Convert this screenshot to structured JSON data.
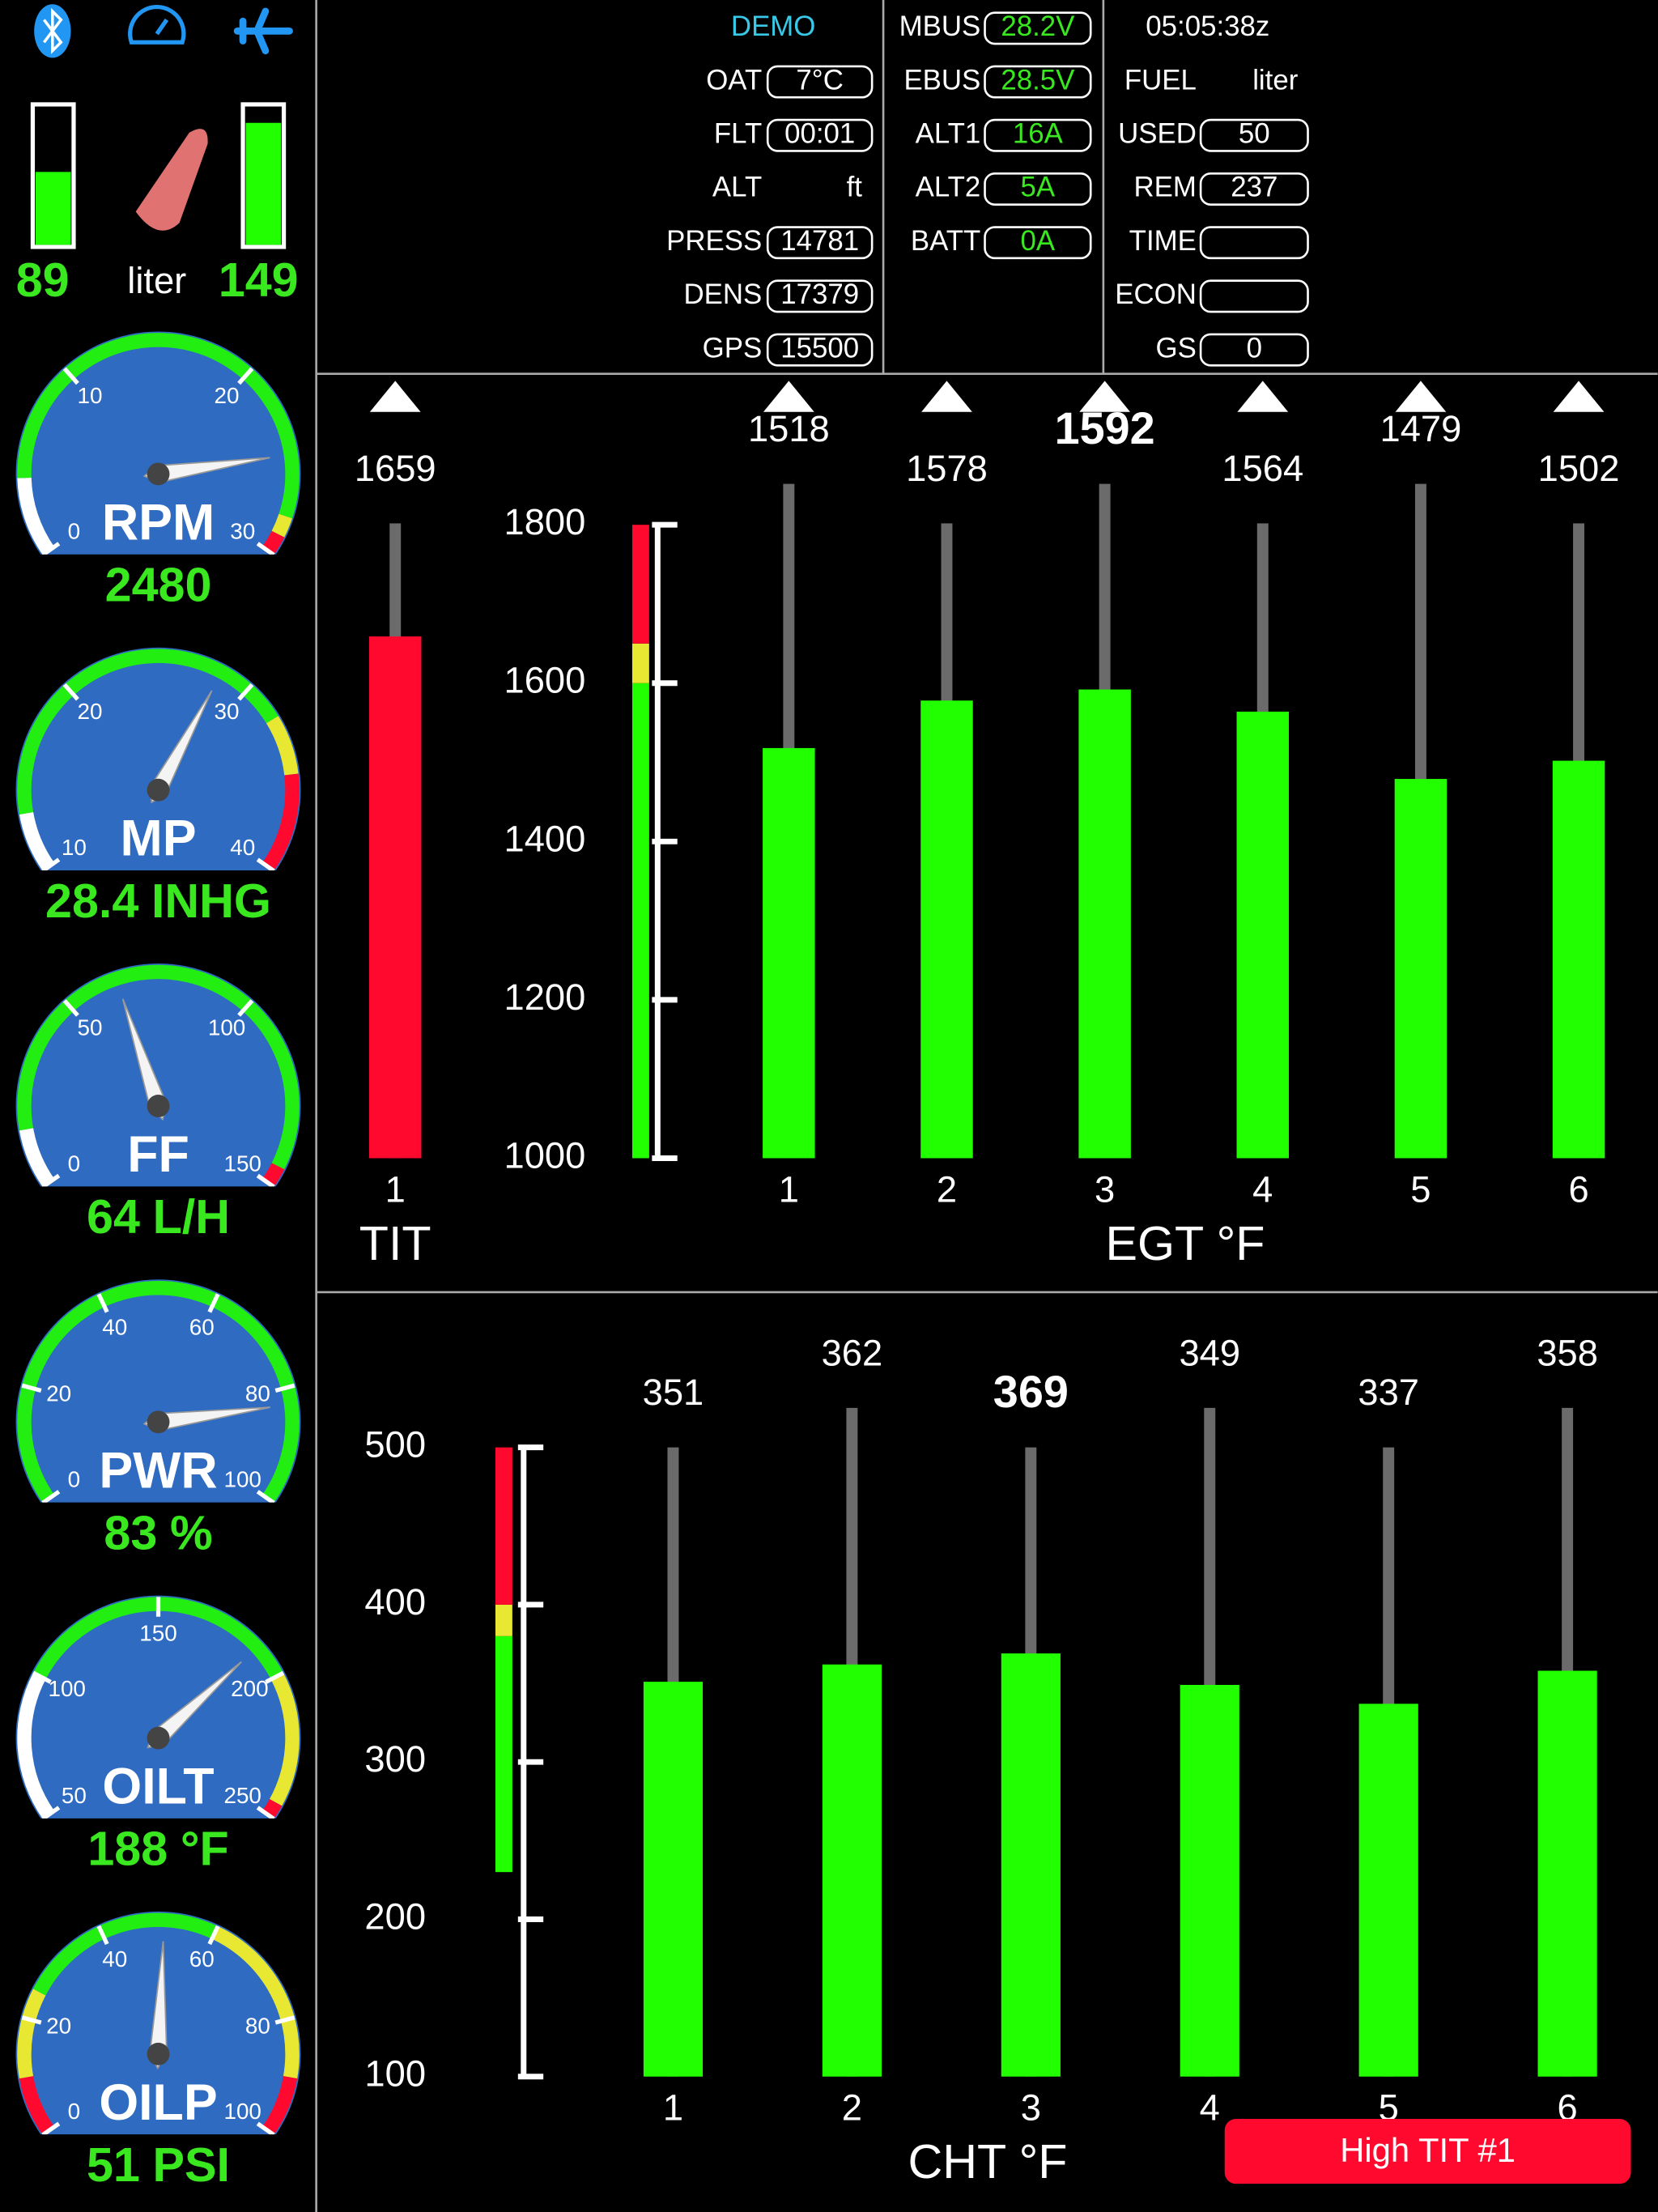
{
  "fuel": {
    "left": 89,
    "unit": "liter",
    "right": 149
  },
  "gauges": [
    {
      "name": "RPM",
      "range": [
        0,
        3000
      ],
      "ticks": [
        0,
        {
          "value": 1000,
          "label": "10"
        },
        {
          "value": 2000,
          "label": "20"
        },
        {
          "value": 3000,
          "label": "30"
        }
      ],
      "value": 2480,
      "bands": [
        {
          "from": 0,
          "to": 400,
          "color": "#ffffff"
        },
        {
          "from": 400,
          "to": 2800,
          "color": "#22ee11"
        },
        {
          "from": 2800,
          "to": 2900,
          "color": "#e8e832"
        },
        {
          "from": 2900,
          "to": 3000,
          "color": "#ff0a2e"
        }
      ]
    },
    {
      "name": "MP",
      "range": [
        10,
        40
      ],
      "ticks": [
        10,
        20,
        30,
        40
      ],
      "value": 28.4,
      "unit": "INHG",
      "bands": [
        {
          "from": 10,
          "to": 13,
          "color": "#ffffff"
        },
        {
          "from": 13,
          "to": 32,
          "color": "#22ee11"
        },
        {
          "from": 32,
          "to": 35,
          "color": "#e8e832"
        },
        {
          "from": 35,
          "to": 40,
          "color": "#ff0a2e"
        }
      ]
    },
    {
      "name": "FF",
      "range": [
        0,
        150
      ],
      "ticks": [
        0,
        50,
        100,
        150
      ],
      "value": 64,
      "unit": "L/H",
      "bands": [
        {
          "from": 0,
          "to": 15,
          "color": "#ffffff"
        },
        {
          "from": 15,
          "to": 145,
          "color": "#22ee11"
        },
        {
          "from": 145,
          "to": 150,
          "color": "#ff0a2e"
        }
      ]
    },
    {
      "name": "PWR",
      "range": [
        0,
        100
      ],
      "ticks": [
        0,
        20,
        40,
        60,
        80,
        100
      ],
      "value": 83,
      "unit": "%",
      "bands": [
        {
          "from": 0,
          "to": 100,
          "color": "#22ee11"
        }
      ]
    },
    {
      "name": "OILT",
      "range": [
        50,
        250
      ],
      "ticks": [
        50,
        100,
        150,
        200,
        250
      ],
      "value": 188,
      "unit": "°F",
      "bands": [
        {
          "from": 50,
          "to": 100,
          "color": "#ffffff"
        },
        {
          "from": 100,
          "to": 200,
          "color": "#22ee11"
        },
        {
          "from": 200,
          "to": 245,
          "color": "#e8e832"
        },
        {
          "from": 245,
          "to": 250,
          "color": "#ff0a2e"
        }
      ]
    },
    {
      "name": "OILP",
      "range": [
        0,
        100
      ],
      "ticks": [
        0,
        20,
        40,
        60,
        80,
        100
      ],
      "value": 51,
      "unit": "PSI",
      "bands": [
        {
          "from": 0,
          "to": 10,
          "color": "#ff0a2e"
        },
        {
          "from": 10,
          "to": 25,
          "color": "#e8e832"
        },
        {
          "from": 25,
          "to": 60,
          "color": "#22ee11"
        },
        {
          "from": 60,
          "to": 90,
          "color": "#e8e832"
        },
        {
          "from": 90,
          "to": 100,
          "color": "#ff0a2e"
        }
      ]
    }
  ],
  "info": {
    "columns": [
      {
        "value_color": "#ffffff",
        "rows": [
          {
            "label": "DEMO",
            "label_color": "#38c8e8"
          },
          {
            "label": "OAT",
            "value": "7°C",
            "box": true
          },
          {
            "label": "FLT",
            "value": "00:01",
            "box": true
          },
          {
            "label": "ALT",
            "value": "ft",
            "box": false
          },
          {
            "label": "PRESS",
            "value": 14781,
            "box": true
          },
          {
            "label": "DENS",
            "value": 17379,
            "box": true
          },
          {
            "label": "GPS",
            "value": 15500,
            "box": true
          }
        ]
      },
      {
        "value_color": "#39e81f",
        "rows": [
          {
            "label": "MBUS",
            "value": "28.2V",
            "box": true
          },
          {
            "label": "EBUS",
            "value": "28.5V",
            "box": true
          },
          {
            "label": "ALT1",
            "value": "16A",
            "box": true
          },
          {
            "label": "ALT2",
            "value": "5A",
            "box": true
          },
          {
            "label": "BATT",
            "value": "0A",
            "box": true
          }
        ]
      },
      {
        "value_color": "#ffffff",
        "rows": [
          {
            "label": "05:05:38z"
          },
          {
            "label": "FUEL",
            "value": "liter",
            "box": false
          },
          {
            "label": "USED",
            "value": 50,
            "box": true
          },
          {
            "label": "REM",
            "value": 237,
            "box": true
          },
          {
            "label": "TIME",
            "box": true
          },
          {
            "label": "ECON",
            "box": true
          },
          {
            "label": "GS",
            "value": 0,
            "box": true
          }
        ]
      }
    ]
  },
  "tit": {
    "title": "TIT",
    "categories": [
      "1"
    ],
    "values": [
      1659
    ],
    "color": "#ff0a2e"
  },
  "egt": {
    "title": "EGT °F",
    "categories": [
      "1",
      "2",
      "3",
      "4",
      "5",
      "6"
    ],
    "values": [
      1518,
      1578,
      1592,
      1564,
      1479,
      1502
    ],
    "color": "#22ff00",
    "ylim": [
      1000,
      1800
    ],
    "yticks": [
      1000,
      1200,
      1400,
      1600,
      1800
    ],
    "bands": [
      {
        "from": 1000,
        "to": 1600,
        "color": "#22ff00"
      },
      {
        "from": 1600,
        "to": 1650,
        "color": "#e8e832"
      },
      {
        "from": 1650,
        "to": 1800,
        "color": "#ff0a2e"
      }
    ]
  },
  "cht": {
    "title": "CHT °F",
    "categories": [
      "1",
      "2",
      "3",
      "4",
      "5",
      "6"
    ],
    "values": [
      351,
      362,
      369,
      349,
      337,
      358
    ],
    "color": "#22ff00",
    "ylim": [
      100,
      500
    ],
    "yticks": [
      100,
      200,
      300,
      400,
      500
    ],
    "bands": [
      {
        "from": 230,
        "to": 380,
        "color": "#22ff00"
      },
      {
        "from": 380,
        "to": 400,
        "color": "#e8e832"
      },
      {
        "from": 400,
        "to": 500,
        "color": "#ff0a2e"
      }
    ]
  },
  "alert": {
    "text": "High TIT #1",
    "color": "#ff0a2e"
  }
}
